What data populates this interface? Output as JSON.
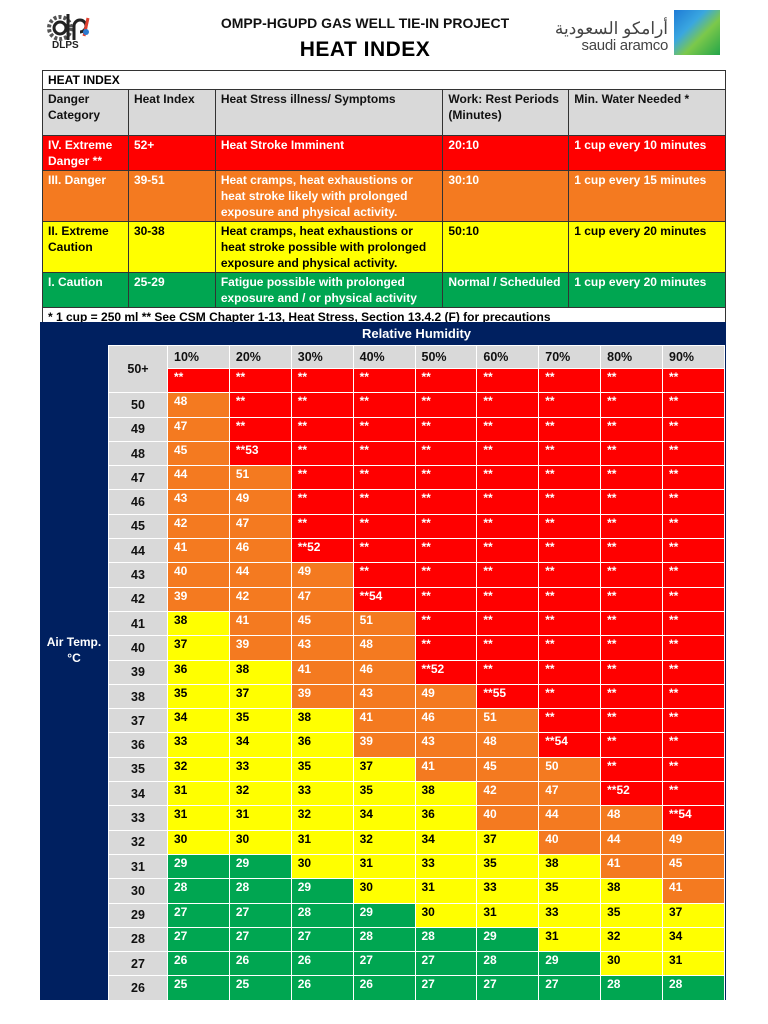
{
  "header": {
    "project": "OMPP-HGUPD GAS WELL TIE-IN PROJECT",
    "title": "HEAT INDEX",
    "left_logo": "DLPS",
    "right_logo_arabic": "أرامكو السعودية",
    "right_logo_english": "saudi aramco"
  },
  "legend_table": {
    "title": "HEAT INDEX",
    "columns": [
      "Danger Category",
      "Heat Index",
      "Heat Stress illness/ Symptoms",
      "Work: Rest Periods (Minutes)",
      "Min. Water Needed  *"
    ],
    "rows": [
      {
        "category": "IV. Extreme Danger **",
        "index": "52+",
        "symptoms": "Heat Stroke Imminent",
        "rest": "20:10",
        "water": "1 cup every 10 minutes",
        "color": "#ff0000"
      },
      {
        "category": "III. Danger",
        "index": "39-51",
        "symptoms": "Heat cramps, heat exhaustions or heat stroke likely with prolonged exposure and physical activity.",
        "rest": "30:10",
        "water": "1 cup every 15 minutes",
        "color": "#f47a20"
      },
      {
        "category": "II. Extreme Caution",
        "index": "30-38",
        "symptoms": "Heat cramps, heat exhaustions or heat stroke possible with prolonged exposure and physical activity.",
        "rest": "50:10",
        "water": "1 cup every 20 minutes",
        "color": "#ffff00"
      },
      {
        "category": "I. Caution",
        "index": "25-29",
        "symptoms": "Fatigue possible with prolonged exposure and / or physical activity",
        "rest": "Normal / Scheduled",
        "water": "1 cup every 20 minutes",
        "color": "#00a651"
      }
    ],
    "footnote": "*  1 cup = 250 ml ** See CSM Chapter 1-13, Heat Stress, Section 13.4.2 (F) for precautions"
  },
  "grid": {
    "humidity_title": "Relative Humidity",
    "temp_label": "Air Temp. °C",
    "humidity": [
      "10%",
      "20%",
      "30%",
      "40%",
      "50%",
      "60%",
      "70%",
      "80%",
      "90%"
    ],
    "rows": [
      {
        "t": "50+",
        "v": [
          "**",
          "**",
          "**",
          "**",
          "**",
          "**",
          "**",
          "**",
          "**"
        ]
      },
      {
        "t": "50",
        "v": [
          "48",
          "**",
          "**",
          "**",
          "**",
          "**",
          "**",
          "**",
          "**"
        ]
      },
      {
        "t": "49",
        "v": [
          "47",
          "**",
          "**",
          "**",
          "**",
          "**",
          "**",
          "**",
          "**"
        ]
      },
      {
        "t": "48",
        "v": [
          "45",
          "**53",
          "**",
          "**",
          "**",
          "**",
          "**",
          "**",
          "**"
        ]
      },
      {
        "t": "47",
        "v": [
          "44",
          "51",
          "**",
          "**",
          "**",
          "**",
          "**",
          "**",
          "**"
        ]
      },
      {
        "t": "46",
        "v": [
          "43",
          "49",
          "**",
          "**",
          "**",
          "**",
          "**",
          "**",
          "**"
        ]
      },
      {
        "t": "45",
        "v": [
          "42",
          "47",
          "**",
          "**",
          "**",
          "**",
          "**",
          "**",
          "**"
        ]
      },
      {
        "t": "44",
        "v": [
          "41",
          "46",
          "**52",
          "**",
          "**",
          "**",
          "**",
          "**",
          "**"
        ]
      },
      {
        "t": "43",
        "v": [
          "40",
          "44",
          "49",
          "**",
          "**",
          "**",
          "**",
          "**",
          "**"
        ]
      },
      {
        "t": "42",
        "v": [
          "39",
          "42",
          "47",
          "**54",
          "**",
          "**",
          "**",
          "**",
          "**"
        ]
      },
      {
        "t": "41",
        "v": [
          "38",
          "41",
          "45",
          "51",
          "**",
          "**",
          "**",
          "**",
          "**"
        ]
      },
      {
        "t": "40",
        "v": [
          "37",
          "39",
          "43",
          "48",
          "**",
          "**",
          "**",
          "**",
          "**"
        ]
      },
      {
        "t": "39",
        "v": [
          "36",
          "38",
          "41",
          "46",
          "**52",
          "**",
          "**",
          "**",
          "**"
        ]
      },
      {
        "t": "38",
        "v": [
          "35",
          "37",
          "39",
          "43",
          "49",
          "**55",
          "**",
          "**",
          "**"
        ]
      },
      {
        "t": "37",
        "v": [
          "34",
          "35",
          "38",
          "41",
          "46",
          "51",
          "**",
          "**",
          "**"
        ]
      },
      {
        "t": "36",
        "v": [
          "33",
          "34",
          "36",
          "39",
          "43",
          "48",
          "**54",
          "**",
          "**"
        ]
      },
      {
        "t": "35",
        "v": [
          "32",
          "33",
          "35",
          "37",
          "41",
          "45",
          "50",
          "**",
          "**"
        ]
      },
      {
        "t": "34",
        "v": [
          "31",
          "32",
          "33",
          "35",
          "38",
          "42",
          "47",
          "**52",
          "**"
        ]
      },
      {
        "t": "33",
        "v": [
          "31",
          "31",
          "32",
          "34",
          "36",
          "40",
          "44",
          "48",
          "**54"
        ]
      },
      {
        "t": "32",
        "v": [
          "30",
          "30",
          "31",
          "32",
          "34",
          "37",
          "40",
          "44",
          "49"
        ]
      },
      {
        "t": "31",
        "v": [
          "29",
          "29",
          "30",
          "31",
          "33",
          "35",
          "38",
          "41",
          "45"
        ]
      },
      {
        "t": "30",
        "v": [
          "28",
          "28",
          "29",
          "30",
          "31",
          "33",
          "35",
          "38",
          "41"
        ]
      },
      {
        "t": "29",
        "v": [
          "27",
          "27",
          "28",
          "29",
          "30",
          "31",
          "33",
          "35",
          "37"
        ]
      },
      {
        "t": "28",
        "v": [
          "27",
          "27",
          "27",
          "28",
          "28",
          "29",
          "31",
          "32",
          "34"
        ]
      },
      {
        "t": "27",
        "v": [
          "26",
          "26",
          "26",
          "27",
          "27",
          "28",
          "29",
          "30",
          "31"
        ]
      },
      {
        "t": "26",
        "v": [
          "25",
          "25",
          "26",
          "26",
          "27",
          "27",
          "27",
          "28",
          "28"
        ]
      }
    ]
  },
  "colors": {
    "danger_extreme": "#ff0000",
    "danger": "#f47a20",
    "caution_extreme": "#ffff00",
    "caution": "#00a651",
    "navy": "#002060"
  }
}
